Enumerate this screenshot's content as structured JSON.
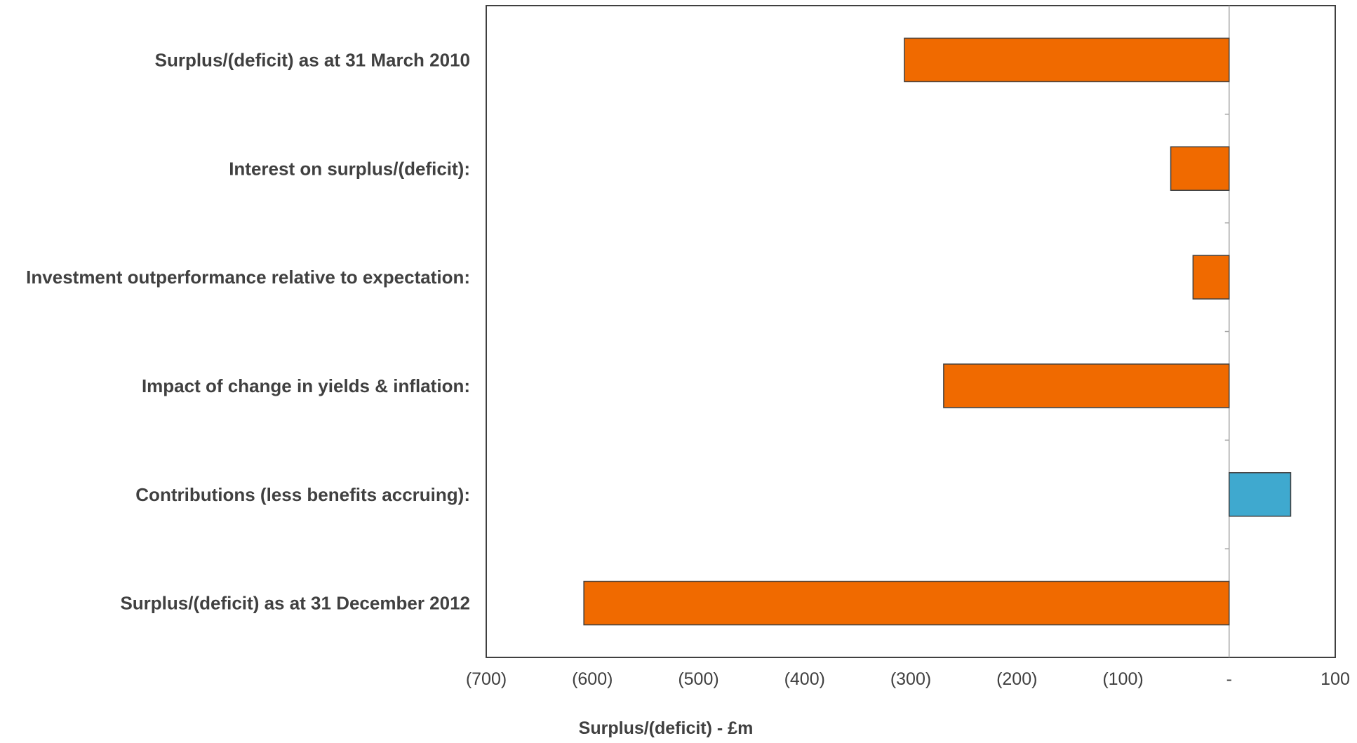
{
  "chart_data": {
    "type": "bar",
    "orientation": "horizontal",
    "title": "",
    "xlabel": "Surplus/(deficit) - £m",
    "ylabel": "",
    "xlim": [
      -700,
      100
    ],
    "x_ticks": [
      -700,
      -600,
      -500,
      -400,
      -300,
      -200,
      -100,
      0,
      100
    ],
    "x_tick_labels": [
      "(700)",
      "(600)",
      "(500)",
      "(400)",
      "(300)",
      "(200)",
      "(100)",
      "-",
      "100"
    ],
    "grid": false,
    "legend": "none",
    "categories": [
      "Surplus/(deficit) as at 31 March 2010",
      "Interest on surplus/(deficit):",
      "Investment outperformance relative to expectation:",
      "Impact of change in yields & inflation:",
      "Contributions (less benefits accruing):",
      "Surplus/(deficit) as at 31 December 2012"
    ],
    "values": [
      -306,
      -55,
      -34,
      -269,
      58,
      -608
    ],
    "colors": {
      "negative": "#F06A00",
      "positive": "#3FA9CF",
      "bar_border": "#404040",
      "axis": "#404040",
      "zero_line": "#A6A6A6",
      "text": "#404040"
    }
  }
}
